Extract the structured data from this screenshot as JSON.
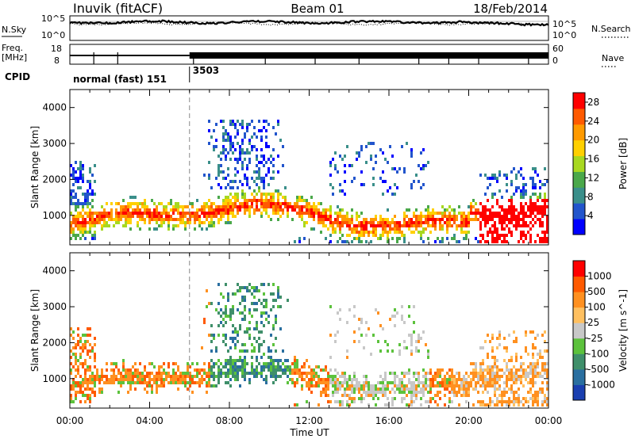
{
  "header": {
    "station": "Inuvik (fitACF)",
    "beam": "Beam 01",
    "date": "18/Feb/2014"
  },
  "strip_labels": {
    "nsky": "N.Sky",
    "nsearch": "N.Search",
    "freq_line1": "Freq.",
    "freq_line2": "[MHz]",
    "nave": "Nave",
    "cpid": "CPID",
    "noise_tick_top_left": "10^5",
    "noise_tick_bottom_left": "10^0",
    "noise_tick_top_right": "10^5",
    "noise_tick_bottom_right": "10^0",
    "freq_tick_top": "18",
    "freq_tick_bottom": "8",
    "nave_tick_top": "60",
    "nave_tick_bottom": "0"
  },
  "cpid_segments": [
    {
      "label": "normal (fast) 151",
      "start_hour": 0
    },
    {
      "label": "3503",
      "start_hour": 6
    }
  ],
  "chart_data": [
    {
      "type": "heatmap",
      "parameter": "Power",
      "ylabel": "Slant Range [km]",
      "xlabel": "Time UT",
      "xlim_hours": [
        0,
        24
      ],
      "x_ticks": [
        "00:00",
        "04:00",
        "08:00",
        "12:00",
        "16:00",
        "20:00",
        "00:00"
      ],
      "ylim": [
        180,
        4500
      ],
      "y_ticks": [
        1000,
        2000,
        3000,
        4000
      ],
      "colorbar": {
        "label": "Power [dB]",
        "range": [
          0,
          30
        ],
        "ticks": [
          4,
          8,
          12,
          16,
          20,
          24,
          28
        ],
        "colors": [
          "#0000ff",
          "#2255cc",
          "#3a8f8a",
          "#4aa84a",
          "#a8d820",
          "#ffd000",
          "#ff9a00",
          "#ff5a00",
          "#ff0000"
        ]
      }
    },
    {
      "type": "heatmap",
      "parameter": "Velocity",
      "ylabel": "Slant Range [km]",
      "xlabel": "Time UT",
      "xlim_hours": [
        0,
        24
      ],
      "x_ticks": [
        "00:00",
        "04:00",
        "08:00",
        "12:00",
        "16:00",
        "20:00",
        "00:00"
      ],
      "ylim": [
        180,
        4500
      ],
      "y_ticks": [
        1000,
        2000,
        3000,
        4000
      ],
      "colorbar": {
        "label": "Velocity [m s^-1]",
        "ticks": [
          "1000",
          "500",
          "100",
          "25",
          "-25",
          "-100",
          "-500",
          "-1000"
        ],
        "colors": [
          "#1a3fb0",
          "#2a6fa0",
          "#3f8f6a",
          "#5cc23c",
          "#c8c8c8",
          "#ffc060",
          "#ff9020",
          "#ff5a00",
          "#ff0000"
        ]
      }
    }
  ],
  "xlabel": "Time UT"
}
